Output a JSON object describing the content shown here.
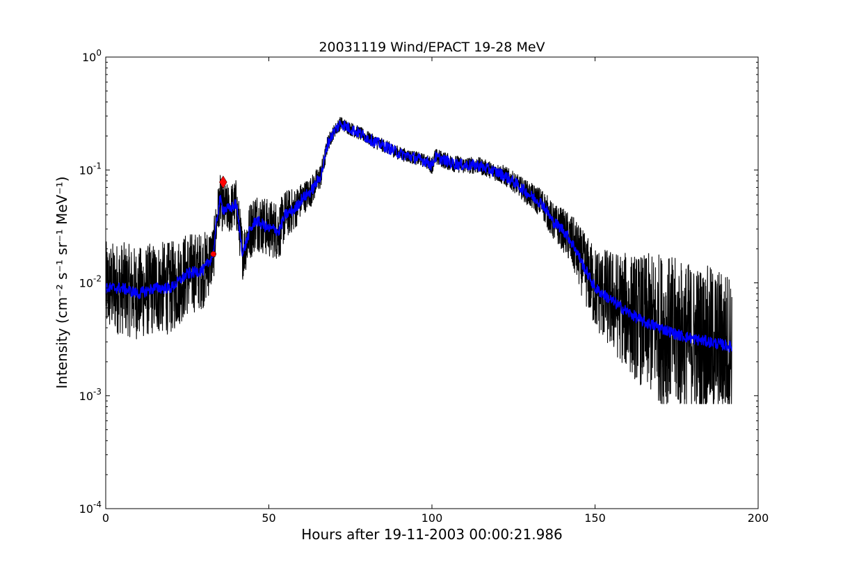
{
  "chart_data": {
    "type": "line",
    "title": "20031119 Wind/EPACT 19-28 MeV",
    "xlabel": "Hours after 19-11-2003 00:00:21.986",
    "ylabel": "Intensity (cm⁻² s⁻¹ sr⁻¹ MeV⁻¹)",
    "xlim": [
      0,
      200
    ],
    "ylim": [
      0.0001,
      1
    ],
    "yscale": "log",
    "grid": false,
    "x_ticks": [
      0,
      50,
      100,
      150,
      200
    ],
    "y_ticks": [
      0.0001,
      0.001,
      0.01,
      0.1,
      1
    ],
    "x_tick_labels": [
      "0",
      "50",
      "100",
      "150",
      "200"
    ],
    "y_tick_labels": [
      {
        "base": "10",
        "exp": "-4"
      },
      {
        "base": "10",
        "exp": "-3"
      },
      {
        "base": "10",
        "exp": "-2"
      },
      {
        "base": "10",
        "exp": "-1"
      },
      {
        "base": "10",
        "exp": "0"
      }
    ],
    "series": [
      {
        "style": "raw",
        "color": "#000000",
        "x": [
          0,
          5,
          10,
          15,
          20,
          25,
          30,
          32,
          33,
          34,
          35,
          36,
          38,
          40,
          41,
          42,
          44,
          46,
          48,
          50,
          52,
          53,
          55,
          58,
          60,
          63,
          66,
          67,
          68,
          70,
          72,
          74,
          78,
          82,
          86,
          90,
          94,
          98,
          100,
          101,
          103,
          106,
          110,
          114,
          118,
          122,
          126,
          130,
          134,
          137,
          140,
          142,
          144,
          146,
          150,
          155,
          160,
          165,
          170,
          175,
          180,
          185,
          190,
          192
        ],
        "y": [
          0.009,
          0.009,
          0.008,
          0.009,
          0.009,
          0.012,
          0.013,
          0.016,
          0.018,
          0.035,
          0.055,
          0.045,
          0.045,
          0.05,
          0.03,
          0.018,
          0.028,
          0.036,
          0.033,
          0.03,
          0.03,
          0.028,
          0.04,
          0.045,
          0.055,
          0.065,
          0.09,
          0.12,
          0.17,
          0.22,
          0.26,
          0.24,
          0.21,
          0.18,
          0.16,
          0.14,
          0.13,
          0.12,
          0.11,
          0.13,
          0.125,
          0.115,
          0.11,
          0.11,
          0.1,
          0.09,
          0.075,
          0.06,
          0.05,
          0.035,
          0.03,
          0.025,
          0.02,
          0.015,
          0.009,
          0.007,
          0.0055,
          0.0045,
          0.004,
          0.0035,
          0.0032,
          0.003,
          0.0028,
          0.0027
        ],
        "noise": [
          0.55,
          0.55,
          0.55,
          0.55,
          0.55,
          0.5,
          0.45,
          0.4,
          0.35,
          0.3,
          0.3,
          0.3,
          0.3,
          0.3,
          0.3,
          0.3,
          0.35,
          0.35,
          0.35,
          0.35,
          0.35,
          0.35,
          0.3,
          0.25,
          0.2,
          0.18,
          0.15,
          0.12,
          0.1,
          0.08,
          0.08,
          0.08,
          0.08,
          0.08,
          0.08,
          0.08,
          0.08,
          0.08,
          0.1,
          0.1,
          0.1,
          0.1,
          0.1,
          0.1,
          0.1,
          0.12,
          0.12,
          0.15,
          0.18,
          0.22,
          0.25,
          0.3,
          0.35,
          0.4,
          0.5,
          0.6,
          0.7,
          0.8,
          0.9,
          0.9,
          0.9,
          0.9,
          0.9,
          0.9
        ],
        "floor": 0.00085
      },
      {
        "style": "smoothed",
        "color": "#0000ff",
        "x": [
          0,
          5,
          10,
          15,
          20,
          25,
          30,
          32,
          33,
          34,
          35,
          36,
          38,
          40,
          41,
          42,
          44,
          46,
          48,
          50,
          52,
          53,
          55,
          58,
          60,
          63,
          66,
          67,
          68,
          70,
          72,
          74,
          78,
          82,
          86,
          90,
          94,
          98,
          100,
          101,
          103,
          106,
          110,
          114,
          118,
          122,
          126,
          130,
          134,
          137,
          140,
          142,
          144,
          146,
          150,
          155,
          160,
          165,
          170,
          175,
          180,
          185,
          190,
          192
        ],
        "y": [
          0.009,
          0.009,
          0.008,
          0.009,
          0.009,
          0.012,
          0.013,
          0.016,
          0.018,
          0.035,
          0.055,
          0.045,
          0.045,
          0.05,
          0.03,
          0.018,
          0.028,
          0.036,
          0.033,
          0.03,
          0.03,
          0.028,
          0.04,
          0.045,
          0.055,
          0.065,
          0.09,
          0.12,
          0.17,
          0.22,
          0.26,
          0.24,
          0.21,
          0.18,
          0.16,
          0.14,
          0.13,
          0.12,
          0.11,
          0.13,
          0.125,
          0.115,
          0.11,
          0.11,
          0.1,
          0.09,
          0.075,
          0.06,
          0.05,
          0.035,
          0.03,
          0.025,
          0.02,
          0.015,
          0.009,
          0.007,
          0.0055,
          0.0045,
          0.004,
          0.0035,
          0.0032,
          0.003,
          0.0028,
          0.0027
        ],
        "noise": 0.1
      }
    ],
    "markers": [
      {
        "shape": "circle",
        "x": 33,
        "y": 0.018,
        "color": "#ff0000"
      },
      {
        "shape": "diamond",
        "x": 36,
        "y": 0.078,
        "color": "#ff0000"
      }
    ]
  }
}
